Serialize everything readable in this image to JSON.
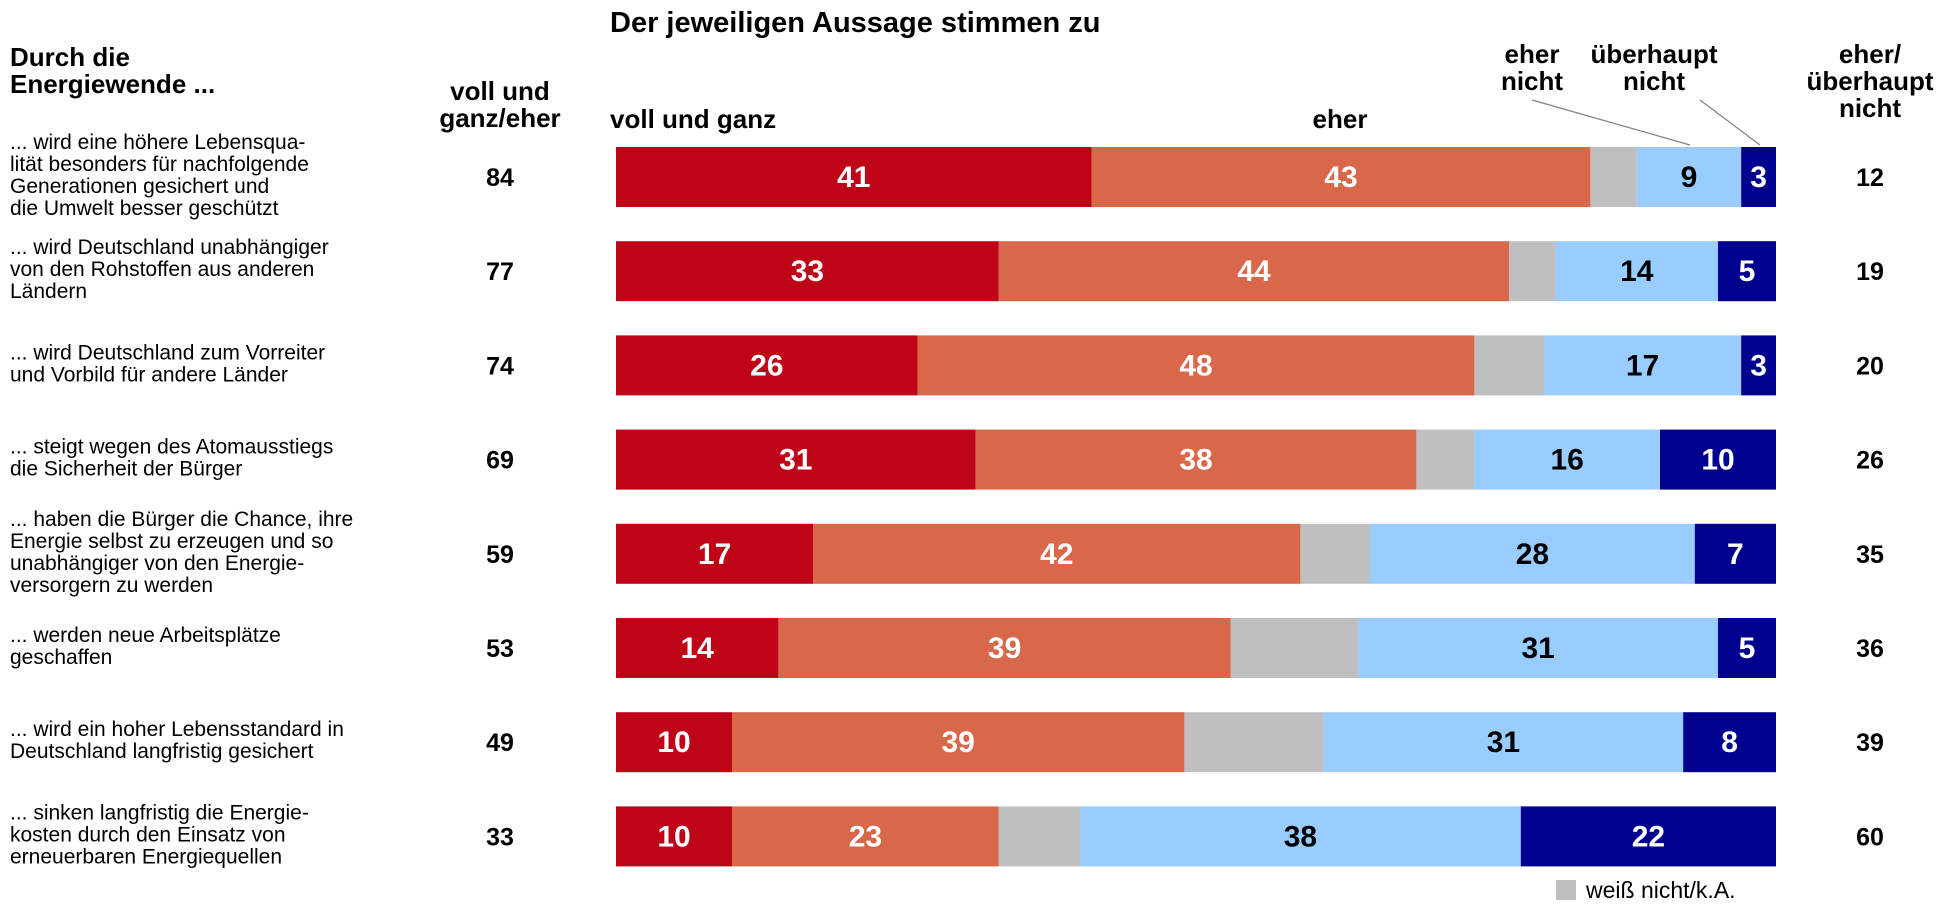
{
  "chart_data": {
    "type": "bar",
    "title": "Der jeweiligen Aussage stimmen zu",
    "stacked": true,
    "orientation": "horizontal",
    "row_header": [
      "Durch die",
      "Energiewende ..."
    ],
    "left_header": [
      "voll und",
      "ganz/eher"
    ],
    "right_header": [
      "eher/",
      "überhaupt",
      "nicht"
    ],
    "segment_headers": {
      "voll": [
        "voll und ganz"
      ],
      "eher": [
        "eher"
      ],
      "eher_nicht": [
        "eher",
        "nicht"
      ],
      "ueberhaupt_nicht": [
        "überhaupt",
        "nicht"
      ]
    },
    "legend": {
      "label": "weiß nicht/k.A.",
      "placement": "bottom-right"
    },
    "series": [
      {
        "key": "voll",
        "color": "#C00418",
        "text_color": "#ffffff",
        "show_label": true
      },
      {
        "key": "eher",
        "color": "#D9674A",
        "text_color": "#ffffff",
        "show_label": true
      },
      {
        "key": "weiss_nicht",
        "color": "#BFBFBF",
        "text_color": "#000000",
        "show_label": false
      },
      {
        "key": "eher_nicht",
        "color": "#99CCFF",
        "text_color": "#000000",
        "show_label": true
      },
      {
        "key": "ueberhaupt_nicht",
        "color": "#00008E",
        "text_color": "#ffffff",
        "show_label": true
      }
    ],
    "rows": [
      {
        "label": [
          "... wird eine höhere Lebensqua-",
          "lität besonders für nachfolgende",
          "Generationen gesichert und",
          "die Umwelt besser geschützt"
        ],
        "total_agree": "84",
        "total_disagree": "12",
        "values": {
          "voll": 41,
          "eher": 43,
          "weiss_nicht": 4,
          "eher_nicht": 9,
          "ueberhaupt_nicht": 3
        }
      },
      {
        "label": [
          "... wird Deutschland unabhängiger",
          "von den Rohstoffen aus anderen",
          "Ländern"
        ],
        "total_agree": "77",
        "total_disagree": "19",
        "values": {
          "voll": 33,
          "eher": 44,
          "weiss_nicht": 4,
          "eher_nicht": 14,
          "ueberhaupt_nicht": 5
        }
      },
      {
        "label": [
          "... wird Deutschland zum Vorreiter",
          "und Vorbild für andere Länder"
        ],
        "total_agree": "74",
        "total_disagree": "20",
        "values": {
          "voll": 26,
          "eher": 48,
          "weiss_nicht": 6,
          "eher_nicht": 17,
          "ueberhaupt_nicht": 3
        }
      },
      {
        "label": [
          "... steigt wegen des Atomausstiegs",
          "die Sicherheit der Bürger"
        ],
        "total_agree": "69",
        "total_disagree": "26",
        "values": {
          "voll": 31,
          "eher": 38,
          "weiss_nicht": 5,
          "eher_nicht": 16,
          "ueberhaupt_nicht": 10
        }
      },
      {
        "label": [
          "... haben die Bürger die Chance, ihre",
          "Energie selbst zu erzeugen und so",
          "unabhängiger von den Energie-",
          "versorgern zu werden"
        ],
        "total_agree": "59",
        "total_disagree": "35",
        "values": {
          "voll": 17,
          "eher": 42,
          "weiss_nicht": 6,
          "eher_nicht": 28,
          "ueberhaupt_nicht": 7
        }
      },
      {
        "label": [
          "... werden neue Arbeitsplätze",
          "geschaffen"
        ],
        "total_agree": "53",
        "total_disagree": "36",
        "values": {
          "voll": 14,
          "eher": 39,
          "weiss_nicht": 11,
          "eher_nicht": 31,
          "ueberhaupt_nicht": 5
        }
      },
      {
        "label": [
          "... wird ein hoher Lebensstandard in",
          "Deutschland langfristig gesichert"
        ],
        "total_agree": "49",
        "total_disagree": "39",
        "values": {
          "voll": 10,
          "eher": 39,
          "weiss_nicht": 12,
          "eher_nicht": 31,
          "ueberhaupt_nicht": 8
        }
      },
      {
        "label": [
          "... sinken langfristig die Energie-",
          "kosten durch den Einsatz von",
          "erneuerbaren Energiequellen"
        ],
        "total_agree": "33",
        "total_disagree": "60",
        "values": {
          "voll": 10,
          "eher": 23,
          "weiss_nicht": 7,
          "eher_nicht": 38,
          "ueberhaupt_nicht": 22
        }
      }
    ]
  }
}
